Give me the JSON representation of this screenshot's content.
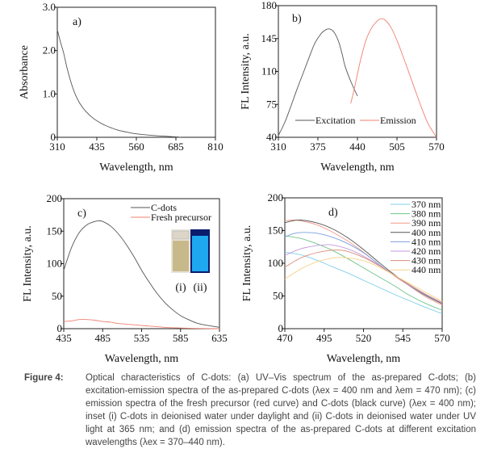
{
  "chart_data": [
    {
      "id": "a",
      "type": "line",
      "panel_label": "a)",
      "xlabel": "Wavelength, nm",
      "ylabel": "Absorbance",
      "xlim": [
        310,
        810
      ],
      "ylim": [
        0,
        3.0
      ],
      "xticks": [
        310,
        435,
        560,
        685,
        810
      ],
      "yticks": [
        0,
        1.0,
        2.0,
        3.0
      ],
      "ytick_labels": [
        "0",
        "1.0",
        "2.0",
        "3.0"
      ],
      "series": [
        {
          "name": "UV-Vis",
          "color": "#555555",
          "x": [
            310,
            320,
            330,
            340,
            350,
            360,
            370,
            380,
            390,
            400,
            420,
            440,
            460,
            480,
            500,
            530,
            560,
            600,
            640,
            685,
            700
          ],
          "y": [
            2.48,
            2.2,
            1.95,
            1.62,
            1.35,
            1.12,
            0.94,
            0.8,
            0.69,
            0.6,
            0.46,
            0.36,
            0.28,
            0.22,
            0.17,
            0.12,
            0.08,
            0.05,
            0.03,
            0.01,
            0.0
          ]
        }
      ]
    },
    {
      "id": "b",
      "type": "line",
      "panel_label": "b)",
      "xlabel": "Wavelength, nm",
      "ylabel": "FL Intensity, a.u.",
      "xlim": [
        310,
        570
      ],
      "ylim": [
        40,
        180
      ],
      "xticks": [
        310,
        375,
        440,
        505,
        570
      ],
      "yticks": [
        40,
        75,
        110,
        145,
        180
      ],
      "ytick_labels": [
        "40",
        "75",
        "110",
        "145",
        "180"
      ],
      "legend": "bottom",
      "series": [
        {
          "name": "Excitation",
          "color": "#555555",
          "x": [
            310,
            320,
            330,
            340,
            350,
            360,
            370,
            380,
            385,
            390,
            395,
            400,
            405,
            410,
            415,
            420,
            430,
            440
          ],
          "y": [
            42,
            55,
            72,
            90,
            107,
            124,
            140,
            150,
            153,
            155,
            155,
            153,
            148,
            140,
            128,
            115,
            98,
            84
          ]
        },
        {
          "name": "Emission",
          "color": "#f08070",
          "x": [
            429,
            435,
            445,
            455,
            465,
            475,
            480,
            485,
            495,
            505,
            515,
            525,
            535,
            545,
            555,
            565,
            570
          ],
          "y": [
            76,
            92,
            122,
            145,
            158,
            165,
            166,
            165,
            157,
            143,
            126,
            108,
            90,
            72,
            56,
            45,
            40
          ]
        }
      ]
    },
    {
      "id": "c",
      "type": "line",
      "panel_label": "c)",
      "xlabel": "Wavelength, nm",
      "ylabel": "FL Intensity, a.u.",
      "xlim": [
        435,
        635
      ],
      "ylim": [
        0,
        200
      ],
      "xticks": [
        435,
        485,
        535,
        585,
        635
      ],
      "yticks": [
        0,
        50,
        100,
        150,
        200
      ],
      "ytick_labels": [
        "0",
        "50",
        "100",
        "150",
        "200"
      ],
      "legend": "top-right",
      "inset_labels": [
        "(i)",
        "(ii)"
      ],
      "series": [
        {
          "name": "C-dots",
          "color": "#555555",
          "x": [
            435,
            445,
            455,
            465,
            475,
            480,
            485,
            495,
            505,
            515,
            525,
            535,
            545,
            555,
            565,
            575,
            585,
            595,
            605,
            615,
            625,
            635
          ],
          "y": [
            90,
            125,
            148,
            160,
            165,
            166,
            165,
            158,
            146,
            130,
            111,
            90,
            71,
            54,
            40,
            29,
            20,
            14,
            9,
            6,
            4,
            2
          ]
        },
        {
          "name": "Fresh precursor",
          "color": "#f08070",
          "x": [
            435,
            445,
            455,
            465,
            475,
            485,
            495,
            505,
            515,
            525,
            535,
            545,
            555,
            565,
            575,
            585,
            600,
            635
          ],
          "y": [
            11,
            12,
            14,
            14,
            13,
            11,
            10,
            8,
            7,
            6,
            5,
            4,
            3,
            2,
            1.5,
            1,
            0.5,
            0
          ]
        }
      ]
    },
    {
      "id": "d",
      "type": "line",
      "panel_label": "d)",
      "xlabel": "Wavelength, nm",
      "ylabel": "FL Intensity, a.u.",
      "xlim": [
        470,
        570
      ],
      "ylim": [
        0,
        200
      ],
      "xticks": [
        470,
        495,
        520,
        545,
        570
      ],
      "yticks": [
        0,
        50,
        100,
        150,
        200
      ],
      "ytick_labels": [
        "0",
        "50",
        "100",
        "150",
        "200"
      ],
      "legend": "top-right",
      "series": [
        {
          "name": "370 nm",
          "color": "#7fd0ea",
          "x": [
            470,
            480,
            490,
            500,
            510,
            520,
            530,
            540,
            550,
            560,
            570
          ],
          "y": [
            117,
            113,
            105,
            95,
            85,
            74,
            63,
            52,
            42,
            32,
            23
          ]
        },
        {
          "name": "380 nm",
          "color": "#70c48a",
          "x": [
            470,
            480,
            490,
            500,
            510,
            520,
            530,
            540,
            550,
            560,
            570
          ],
          "y": [
            142,
            138,
            130,
            120,
            107,
            93,
            79,
            65,
            50,
            38,
            28
          ]
        },
        {
          "name": "390 nm",
          "color": "#f29a8a",
          "x": [
            470,
            475,
            480,
            490,
            500,
            510,
            520,
            530,
            540,
            550,
            560,
            570
          ],
          "y": [
            165,
            166,
            165,
            159,
            148,
            134,
            117,
            98,
            80,
            64,
            48,
            36
          ]
        },
        {
          "name": "400 nm",
          "color": "#555555",
          "x": [
            470,
            475,
            480,
            490,
            500,
            510,
            520,
            530,
            540,
            550,
            560,
            570
          ],
          "y": [
            162,
            165,
            166,
            162,
            153,
            139,
            121,
            101,
            82,
            65,
            50,
            38
          ]
        },
        {
          "name": "410 nm",
          "color": "#7aa0dc",
          "x": [
            470,
            475,
            480,
            490,
            500,
            510,
            520,
            530,
            540,
            550,
            560,
            570
          ],
          "y": [
            140,
            145,
            147,
            146,
            140,
            130,
            116,
            98,
            81,
            65,
            51,
            39
          ]
        },
        {
          "name": "420 nm",
          "color": "#c39ae0",
          "x": [
            470,
            480,
            490,
            495,
            500,
            510,
            520,
            530,
            540,
            550,
            560,
            570
          ],
          "y": [
            112,
            122,
            127,
            128,
            128,
            122,
            111,
            97,
            81,
            66,
            52,
            40
          ]
        },
        {
          "name": "430 nm",
          "color": "#d98b78",
          "x": [
            470,
            480,
            490,
            500,
            505,
            510,
            520,
            530,
            540,
            550,
            560,
            570
          ],
          "y": [
            94,
            108,
            116,
            120,
            120,
            118,
            109,
            96,
            81,
            66,
            52,
            39
          ]
        },
        {
          "name": "440 nm",
          "color": "#f7d28a",
          "x": [
            470,
            480,
            490,
            500,
            505,
            510,
            520,
            530,
            540,
            550,
            560,
            570
          ],
          "y": [
            76,
            91,
            102,
            108,
            109,
            108,
            104,
            94,
            81,
            68,
            55,
            42
          ]
        }
      ]
    }
  ],
  "inset": {
    "vial_i_color": "#c8b98a",
    "vial_ii_color": "#1ea8f0"
  },
  "caption": {
    "label": "Figure 4:",
    "text": "Optical characteristics of C-dots: (a) UV–Vis spectrum of the as-prepared C-dots; (b) excitation-emission spectra of the as-prepared C-dots (λex = 400 nm and λem = 470 nm); (c) emission spectra of the fresh precursor (red curve) and C-dots (black curve) (λex = 400 nm); inset (i) C-dots in deionised water under daylight and (ii) C-dots in deionised water under UV light at 365 nm; and (d) emission spectra of the as-prepared C-dots at different excitation wavelengths (λex = 370–440 nm)."
  }
}
